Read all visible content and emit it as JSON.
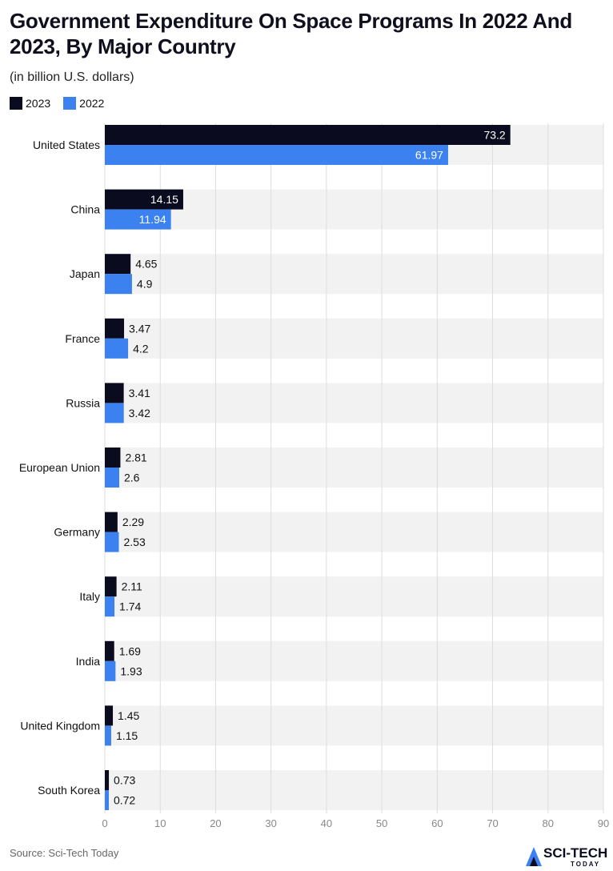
{
  "title": "Government Expenditure On Space Programs In 2022 And 2023, By Major Country",
  "subtitle": "(in billion U.S. dollars)",
  "source": "Source: Sci-Tech Today",
  "logo": {
    "main": "SCI-TECH",
    "sub": "TODAY"
  },
  "colors": {
    "series_2023": "#0b0b1f",
    "series_2022": "#3b82f0",
    "band": "#f2f2f2",
    "grid": "#dddddd",
    "axis_text": "#888888",
    "label_inside": "#ffffff",
    "label_outside": "#111111"
  },
  "chart_data": {
    "type": "bar",
    "orientation": "horizontal",
    "categories": [
      "United States",
      "China",
      "Japan",
      "France",
      "Russia",
      "European Union",
      "Germany",
      "Italy",
      "India",
      "United Kingdom",
      "South Korea"
    ],
    "series": [
      {
        "name": "2023",
        "values": [
          73.2,
          14.15,
          4.65,
          3.47,
          3.41,
          2.81,
          2.29,
          2.11,
          1.69,
          1.45,
          0.73
        ]
      },
      {
        "name": "2022",
        "values": [
          61.97,
          11.94,
          4.9,
          4.2,
          3.42,
          2.6,
          2.53,
          1.74,
          1.93,
          1.15,
          0.72
        ]
      }
    ],
    "xlim": [
      0,
      90
    ],
    "xticks": [
      0,
      10,
      20,
      30,
      40,
      50,
      60,
      70,
      80,
      90
    ],
    "grid": true,
    "legend": "top-left"
  }
}
